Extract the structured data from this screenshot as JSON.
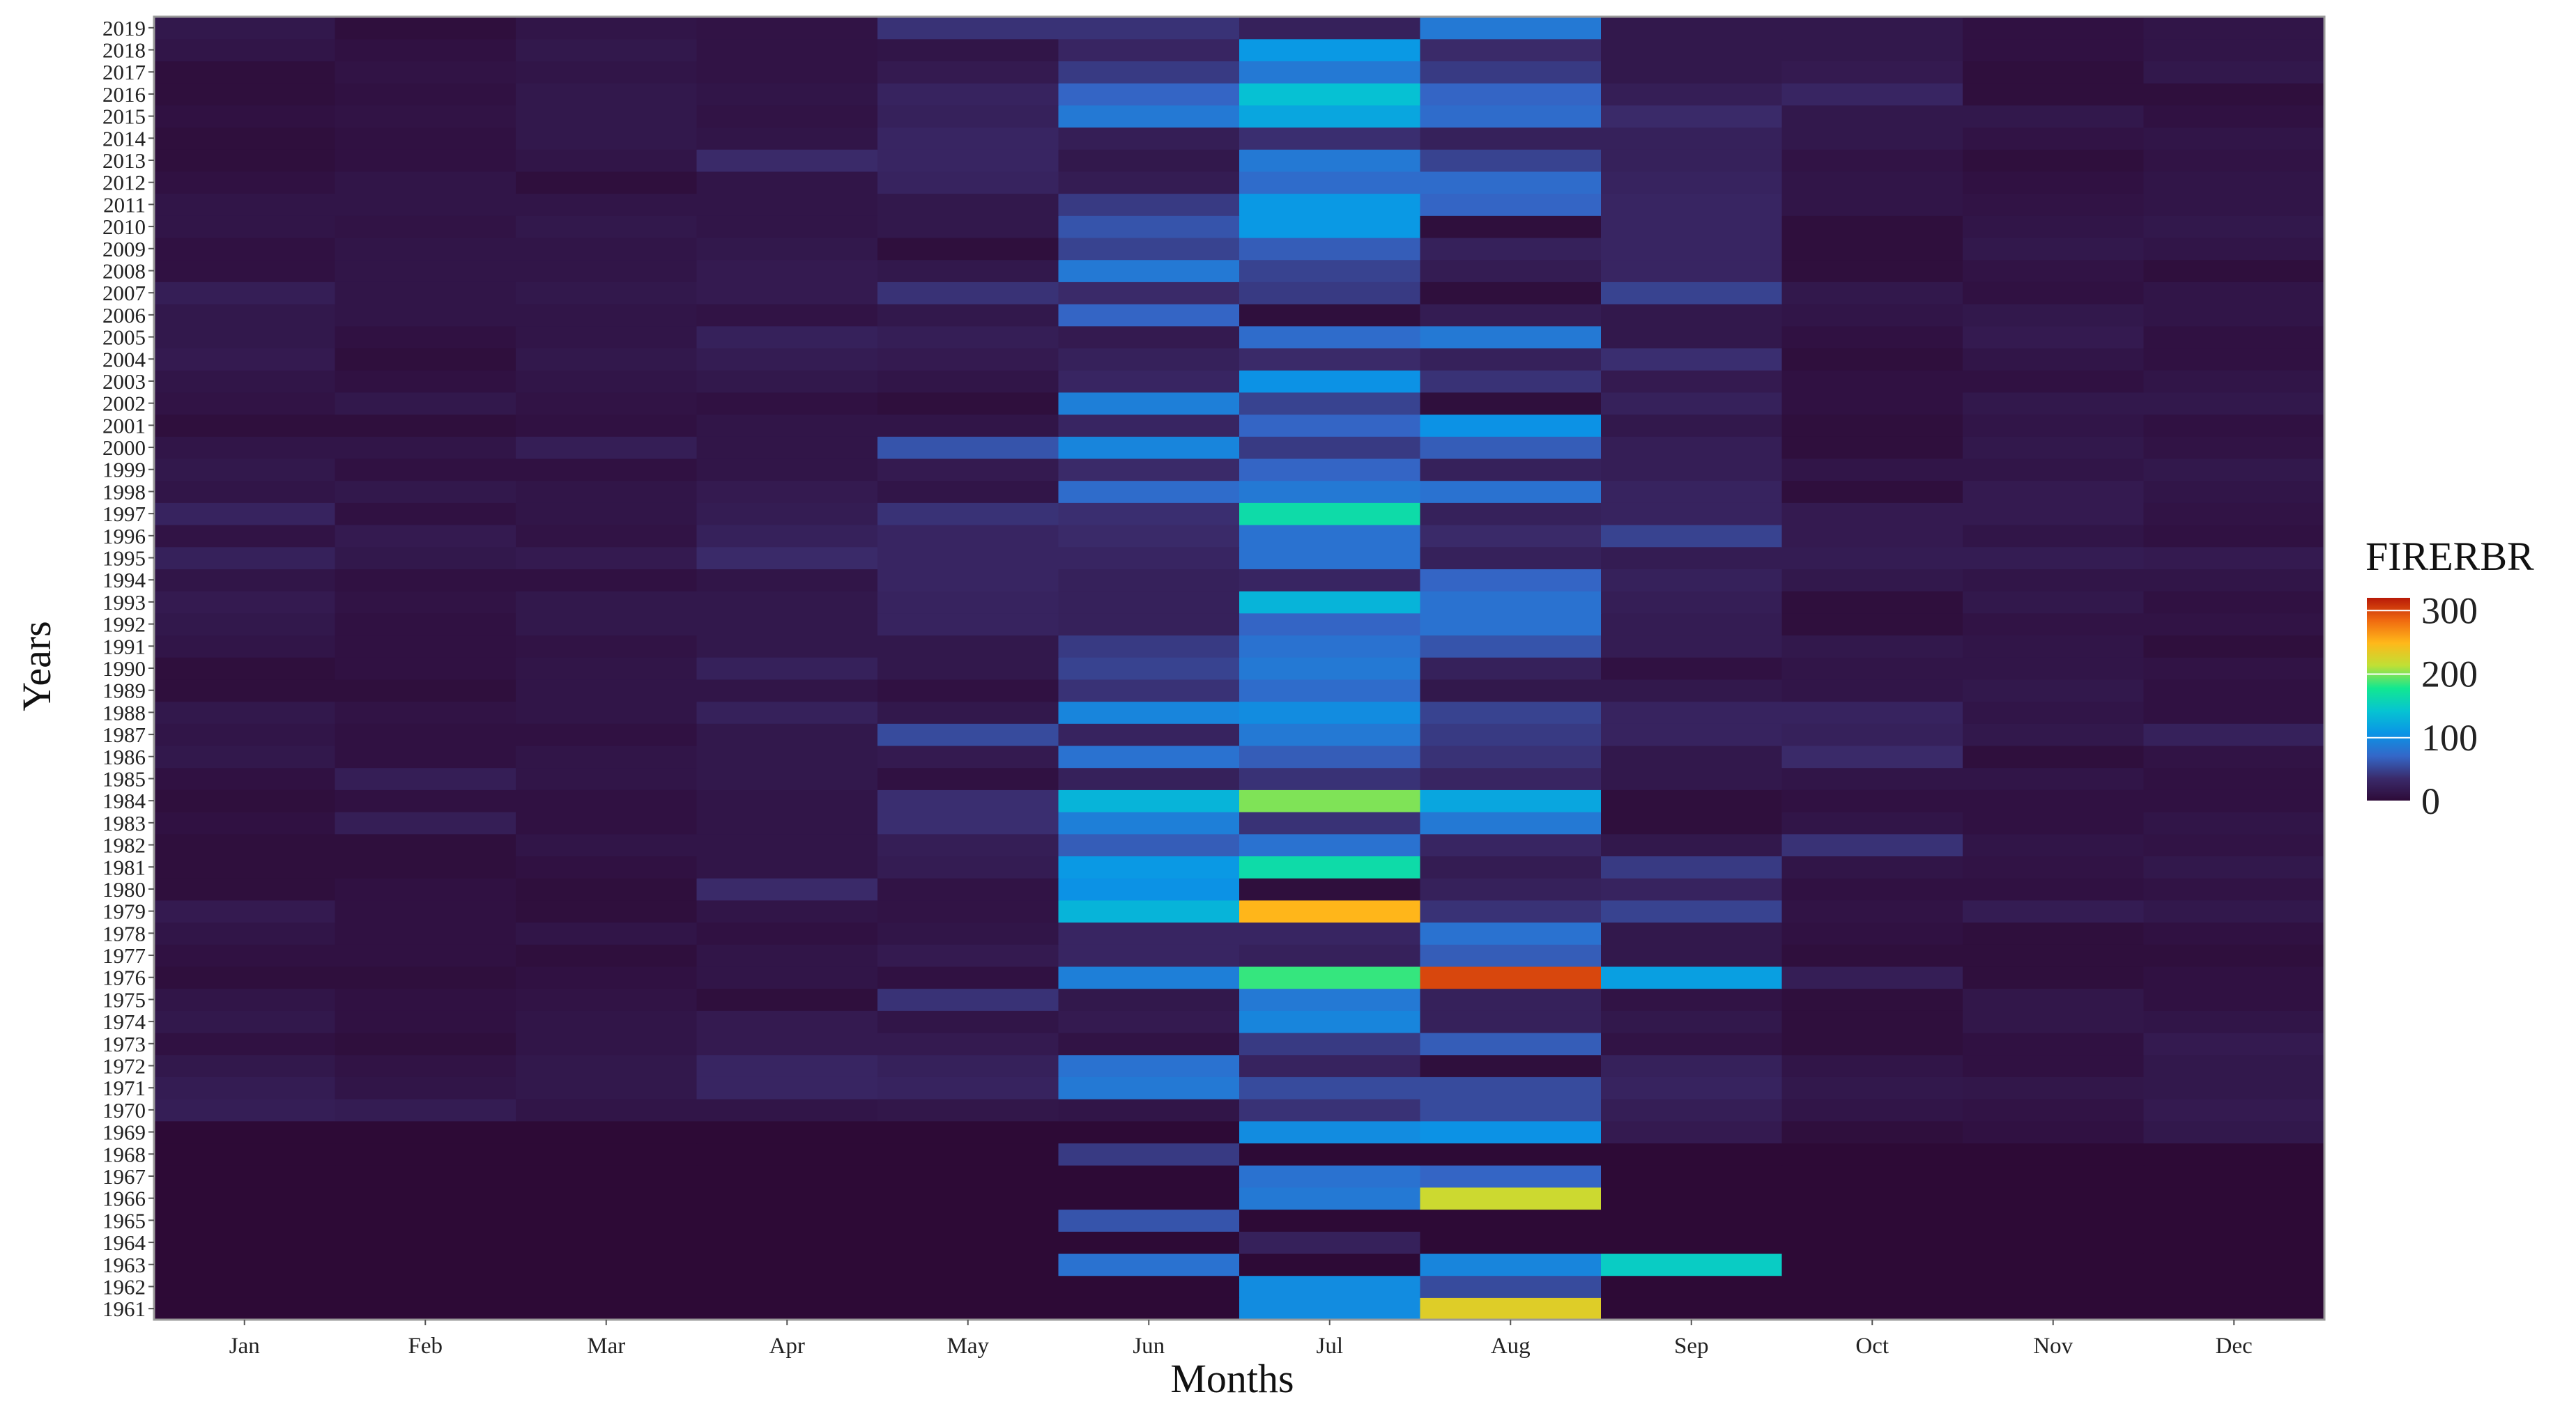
{
  "chart_data": {
    "type": "heatmap",
    "xlabel": "Months",
    "ylabel": "Years",
    "legend_title": "FIRERBR",
    "legend_ticks": [
      0,
      100,
      200,
      300
    ],
    "zlim": [
      0,
      320
    ],
    "colormap": [
      "#2D0A36",
      "#3A2A6A",
      "#3467C8",
      "#0A94E6",
      "#06C4D2",
      "#12E890",
      "#C0E035",
      "#FFB81A",
      "#F06A10",
      "#B81A08"
    ],
    "months": [
      "Jan",
      "Feb",
      "Mar",
      "Apr",
      "May",
      "Jun",
      "Jul",
      "Aug",
      "Sep",
      "Oct",
      "Nov",
      "Dec"
    ],
    "years": [
      1961,
      1962,
      1963,
      1964,
      1965,
      1966,
      1967,
      1968,
      1969,
      1970,
      1971,
      1972,
      1973,
      1974,
      1975,
      1976,
      1977,
      1978,
      1979,
      1980,
      1981,
      1982,
      1983,
      1984,
      1985,
      1986,
      1987,
      1988,
      1989,
      1990,
      1991,
      1992,
      1993,
      1994,
      1995,
      1996,
      1997,
      1998,
      1999,
      2000,
      2001,
      2002,
      2003,
      2004,
      2005,
      2006,
      2007,
      2008,
      2009,
      2010,
      2011,
      2012,
      2013,
      2014,
      2015,
      2016,
      2017,
      2018,
      2019
    ],
    "values": [
      [
        0,
        0,
        0,
        0,
        0,
        0,
        100,
        230,
        0,
        0,
        0,
        0
      ],
      [
        0,
        0,
        0,
        0,
        0,
        0,
        100,
        55,
        0,
        0,
        0,
        0
      ],
      [
        0,
        0,
        0,
        0,
        0,
        80,
        0,
        95,
        150,
        0,
        0,
        0
      ],
      [
        0,
        0,
        0,
        0,
        0,
        0,
        25,
        0,
        0,
        0,
        0,
        0
      ],
      [
        0,
        0,
        0,
        0,
        0,
        60,
        0,
        0,
        0,
        0,
        0,
        0
      ],
      [
        0,
        0,
        0,
        0,
        0,
        0,
        85,
        220,
        0,
        0,
        0,
        0
      ],
      [
        0,
        0,
        0,
        0,
        0,
        0,
        80,
        70,
        0,
        0,
        0,
        0
      ],
      [
        0,
        0,
        0,
        0,
        0,
        45,
        0,
        0,
        0,
        0,
        0,
        0
      ],
      [
        0,
        0,
        0,
        0,
        0,
        0,
        100,
        105,
        18,
        5,
        8,
        15
      ],
      [
        22,
        20,
        12,
        12,
        14,
        12,
        40,
        55,
        22,
        12,
        10,
        18
      ],
      [
        20,
        12,
        15,
        30,
        28,
        85,
        55,
        55,
        28,
        15,
        14,
        15
      ],
      [
        15,
        10,
        15,
        30,
        25,
        80,
        28,
        5,
        25,
        12,
        8,
        15
      ],
      [
        8,
        5,
        12,
        18,
        18,
        10,
        45,
        65,
        10,
        5,
        8,
        18
      ],
      [
        15,
        8,
        12,
        18,
        12,
        18,
        95,
        25,
        15,
        5,
        14,
        12
      ],
      [
        12,
        8,
        10,
        5,
        40,
        15,
        85,
        25,
        10,
        5,
        14,
        8
      ],
      [
        5,
        5,
        8,
        12,
        8,
        90,
        185,
        300,
        115,
        22,
        5,
        8
      ],
      [
        8,
        8,
        5,
        12,
        18,
        30,
        25,
        65,
        15,
        5,
        5,
        5
      ],
      [
        12,
        8,
        12,
        8,
        12,
        30,
        30,
        80,
        15,
        8,
        5,
        8
      ],
      [
        18,
        8,
        5,
        12,
        10,
        130,
        250,
        40,
        50,
        10,
        20,
        15
      ],
      [
        5,
        8,
        5,
        35,
        10,
        105,
        5,
        25,
        28,
        8,
        8,
        10
      ],
      [
        5,
        5,
        8,
        12,
        20,
        110,
        165,
        20,
        45,
        12,
        10,
        15
      ],
      [
        5,
        5,
        12,
        12,
        22,
        65,
        80,
        30,
        15,
        40,
        12,
        10
      ],
      [
        8,
        22,
        8,
        12,
        38,
        90,
        40,
        85,
        5,
        12,
        8,
        12
      ],
      [
        5,
        8,
        8,
        12,
        38,
        130,
        200,
        120,
        5,
        8,
        8,
        8
      ],
      [
        8,
        22,
        12,
        15,
        8,
        25,
        40,
        30,
        15,
        12,
        12,
        8
      ],
      [
        15,
        8,
        12,
        15,
        18,
        80,
        65,
        40,
        15,
        35,
        5,
        10
      ],
      [
        12,
        8,
        8,
        15,
        55,
        28,
        85,
        45,
        28,
        25,
        15,
        25
      ],
      [
        15,
        10,
        12,
        25,
        15,
        95,
        100,
        50,
        28,
        28,
        12,
        8
      ],
      [
        5,
        5,
        12,
        12,
        8,
        40,
        75,
        15,
        15,
        12,
        15,
        8
      ],
      [
        5,
        8,
        12,
        25,
        15,
        50,
        85,
        25,
        8,
        12,
        12,
        10
      ],
      [
        12,
        8,
        10,
        15,
        15,
        45,
        80,
        60,
        20,
        15,
        12,
        5
      ],
      [
        15,
        8,
        15,
        15,
        28,
        25,
        70,
        80,
        20,
        5,
        10,
        10
      ],
      [
        18,
        10,
        15,
        15,
        28,
        25,
        130,
        80,
        22,
        5,
        15,
        8
      ],
      [
        12,
        8,
        8,
        12,
        30,
        25,
        30,
        70,
        25,
        15,
        12,
        12
      ],
      [
        25,
        15,
        18,
        35,
        30,
        30,
        80,
        25,
        20,
        20,
        20,
        18
      ],
      [
        10,
        18,
        10,
        25,
        30,
        35,
        80,
        35,
        50,
        18,
        12,
        8
      ],
      [
        28,
        8,
        12,
        20,
        40,
        38,
        165,
        25,
        28,
        18,
        18,
        10
      ],
      [
        12,
        15,
        12,
        18,
        12,
        75,
        85,
        80,
        28,
        5,
        18,
        12
      ],
      [
        15,
        8,
        8,
        12,
        18,
        35,
        70,
        25,
        22,
        12,
        12,
        15
      ],
      [
        12,
        12,
        22,
        12,
        60,
        95,
        45,
        65,
        22,
        5,
        15,
        10
      ],
      [
        5,
        5,
        8,
        12,
        12,
        30,
        70,
        105,
        15,
        5,
        12,
        8
      ],
      [
        10,
        15,
        10,
        8,
        5,
        90,
        50,
        5,
        25,
        8,
        15,
        15
      ],
      [
        12,
        8,
        12,
        15,
        12,
        30,
        105,
        40,
        18,
        8,
        8,
        12
      ],
      [
        18,
        5,
        15,
        20,
        18,
        25,
        35,
        25,
        38,
        5,
        12,
        8
      ],
      [
        15,
        8,
        12,
        25,
        22,
        18,
        75,
        85,
        15,
        8,
        18,
        8
      ],
      [
        15,
        12,
        12,
        10,
        15,
        70,
        5,
        20,
        15,
        12,
        15,
        12
      ],
      [
        22,
        12,
        15,
        18,
        40,
        35,
        45,
        5,
        50,
        15,
        8,
        12
      ],
      [
        8,
        12,
        12,
        18,
        15,
        85,
        50,
        20,
        30,
        5,
        10,
        5
      ],
      [
        8,
        12,
        12,
        15,
        5,
        50,
        65,
        25,
        30,
        5,
        15,
        12
      ],
      [
        12,
        10,
        15,
        12,
        15,
        60,
        110,
        5,
        30,
        5,
        12,
        15
      ],
      [
        12,
        12,
        12,
        12,
        15,
        45,
        110,
        70,
        30,
        12,
        10,
        12
      ],
      [
        8,
        12,
        5,
        12,
        28,
        20,
        75,
        75,
        28,
        12,
        8,
        12
      ],
      [
        5,
        8,
        12,
        35,
        30,
        15,
        85,
        50,
        25,
        10,
        5,
        10
      ],
      [
        5,
        8,
        15,
        12,
        30,
        22,
        38,
        25,
        25,
        15,
        10,
        12
      ],
      [
        8,
        10,
        15,
        10,
        25,
        85,
        120,
        75,
        35,
        15,
        15,
        8
      ],
      [
        5,
        8,
        15,
        12,
        28,
        70,
        140,
        70,
        22,
        30,
        5,
        5
      ],
      [
        5,
        10,
        12,
        10,
        18,
        45,
        85,
        45,
        15,
        18,
        5,
        15
      ],
      [
        12,
        8,
        15,
        10,
        12,
        30,
        110,
        35,
        15,
        15,
        8,
        12
      ],
      [
        15,
        5,
        12,
        10,
        40,
        40,
        25,
        85,
        15,
        15,
        8,
        12
      ]
    ]
  }
}
